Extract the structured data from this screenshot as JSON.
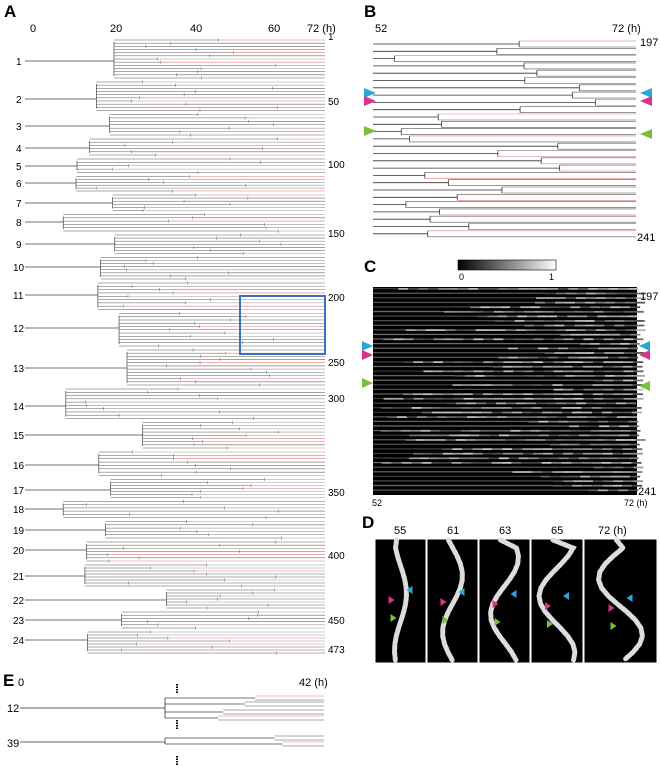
{
  "figure": {
    "panels": {
      "A": {
        "label": "A",
        "time_ticks": [
          "0",
          "20",
          "40",
          "60",
          "72 (h)"
        ],
        "lineage_labels": [
          "1",
          "2",
          "3",
          "4",
          "5",
          "6",
          "7",
          "8",
          "9",
          "10",
          "11",
          "12",
          "13",
          "14",
          "15",
          "16",
          "17",
          "18",
          "19",
          "20",
          "21",
          "22",
          "23",
          "24"
        ],
        "cell_index_labels": [
          "1",
          "50",
          "100",
          "150",
          "200",
          "250",
          "300",
          "350",
          "400",
          "450",
          "473"
        ]
      },
      "B": {
        "label": "B",
        "time_start": "52",
        "time_end": "72 (h)",
        "cell_top": "197",
        "cell_bottom": "241"
      },
      "C": {
        "label": "C",
        "colorbar_min": "0",
        "colorbar_max": "1",
        "cell_top": "197",
        "cell_bottom": "241",
        "time_start": "52",
        "time_end": "72 (h)"
      },
      "D": {
        "label": "D",
        "frame_times": [
          "55",
          "61",
          "63",
          "65",
          "72 (h)"
        ]
      },
      "E": {
        "label": "E",
        "time_start": "0",
        "time_end": "42 (h)",
        "lineage_labels": [
          "12",
          "39"
        ]
      }
    },
    "arrow_colors": {
      "blue": "#2aa7d9",
      "magenta": "#d9338c",
      "green": "#7cbf3a"
    },
    "highlight_box_color": "#3a6fc4",
    "red_trace_color": "#e07a7a"
  }
}
